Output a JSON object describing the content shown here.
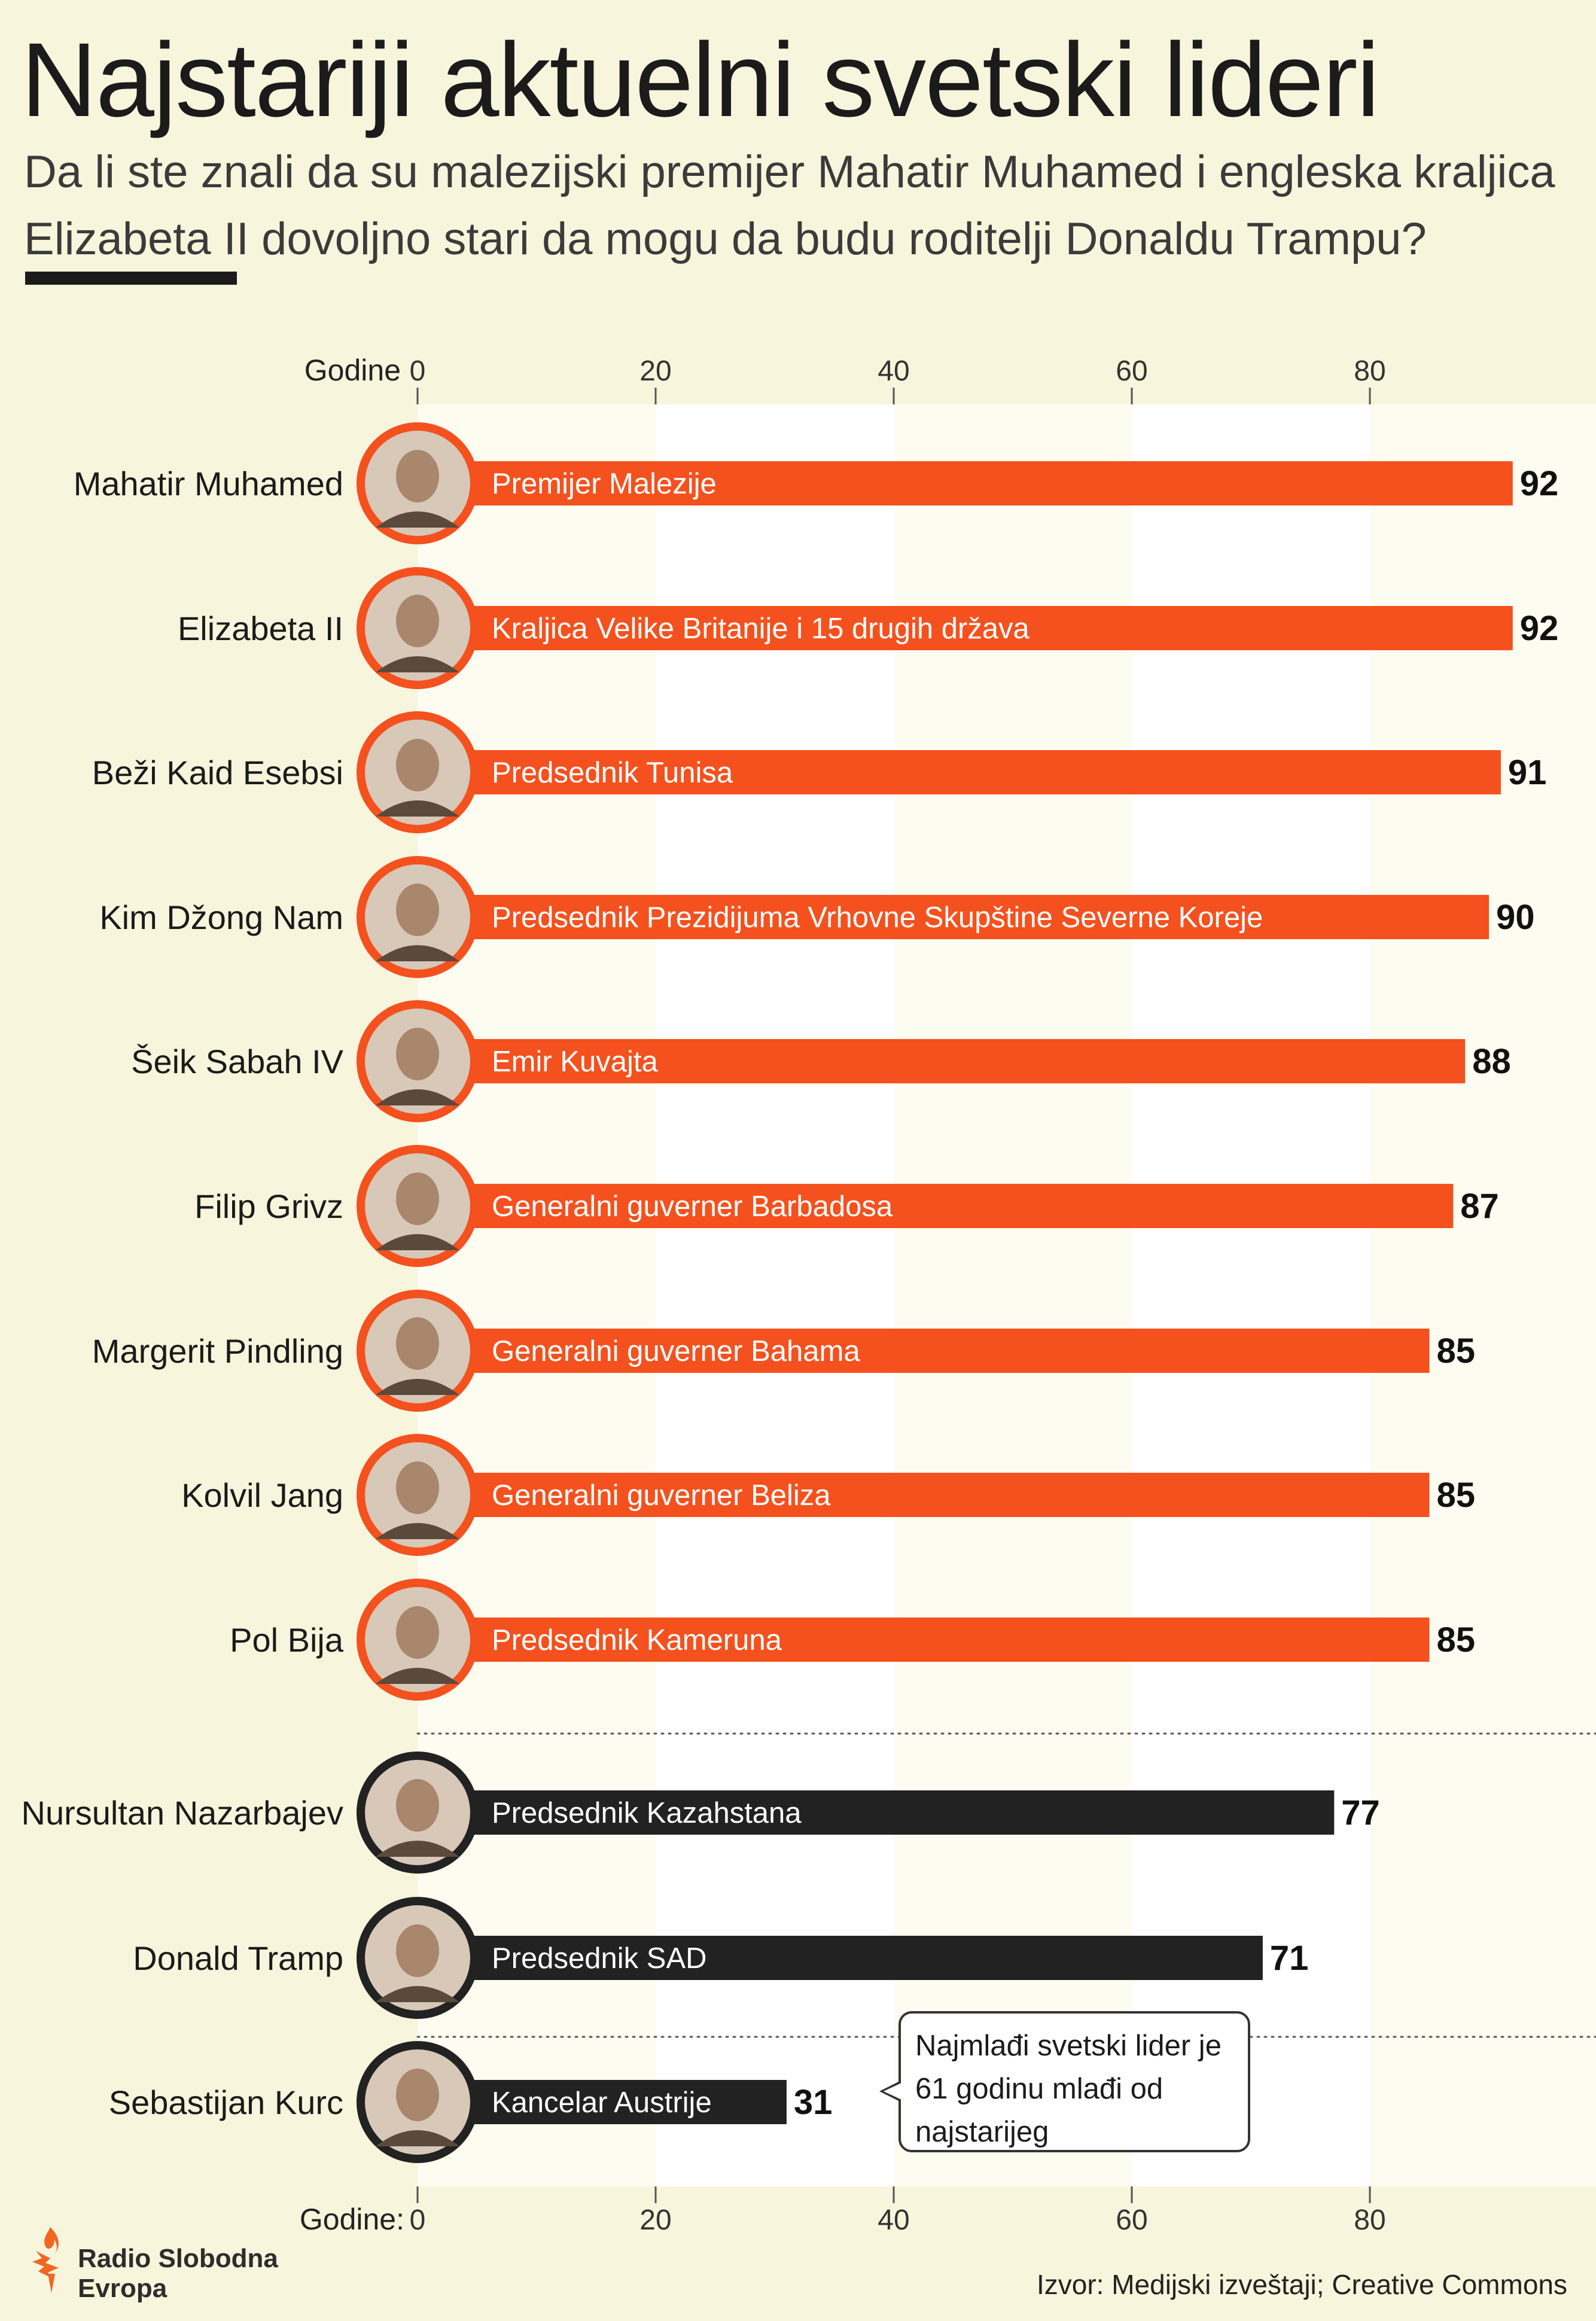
{
  "title": "Najstariji aktuelni svetski lideri",
  "subtitle": "Da li ste znali da su malezijski premijer Mahatir Muhamed i engleska kraljica Elizabeta II dovoljno stari da mogu da budu roditelji Donaldu Trampu?",
  "callout": "Najmlađi svetski lider je 61 godinu mlađi od najstarijeg",
  "source": "Izvor: Medijski izveštaji; Creative Commons",
  "logo": {
    "name": "Radio Slobodna Evropa",
    "icon": "rse-flame-logo"
  },
  "colors": {
    "background": "#f7f5dc",
    "band_light": "#fcfcf0",
    "band_white": "#ffffff",
    "bar_orange": "#f4511e",
    "bar_black": "#222222",
    "logo": "#f26522"
  },
  "chart_data": {
    "type": "bar",
    "orientation": "horizontal",
    "axis_label_top": "Godine",
    "axis_label_bottom": "Godine:",
    "ticks": [
      0,
      20,
      40,
      60,
      80
    ],
    "xlim": [
      0,
      100
    ],
    "rows": [
      {
        "name": "Mahatir Muhamed",
        "role": "Premijer Malezije",
        "value": 92,
        "group": "oldest",
        "icon": "portrait-photo"
      },
      {
        "name": "Elizabeta II",
        "role": "Kraljica Velike Britanije i 15 drugih država",
        "value": 92,
        "group": "oldest",
        "icon": "portrait-photo"
      },
      {
        "name": "Beži Kaid Esebsi",
        "role": "Predsednik Tunisa",
        "value": 91,
        "group": "oldest",
        "icon": "portrait-photo"
      },
      {
        "name": "Kim Džong Nam",
        "role": "Predsednik Prezidijuma Vrhovne Skupštine Severne Koreje",
        "value": 90,
        "group": "oldest",
        "icon": "portrait-photo"
      },
      {
        "name": "Šeik Sabah IV",
        "role": "Emir Kuvajta",
        "value": 88,
        "group": "oldest",
        "icon": "portrait-photo"
      },
      {
        "name": "Filip Grivz",
        "role": "Generalni guverner Barbadosa",
        "value": 87,
        "group": "oldest",
        "icon": "portrait-photo"
      },
      {
        "name": "Margerit Pindling",
        "role": "Generalni guverner Bahama",
        "value": 85,
        "group": "oldest",
        "icon": "portrait-photo"
      },
      {
        "name": "Kolvil Jang",
        "role": "Generalni guverner Beliza",
        "value": 85,
        "group": "oldest",
        "icon": "portrait-photo"
      },
      {
        "name": "Pol Bija",
        "role": "Predsednik Kameruna",
        "value": 85,
        "group": "oldest",
        "icon": "portrait-photo"
      },
      {
        "name": "Nursultan Nazarbajev",
        "role": "Predsednik Kazahstana",
        "value": 77,
        "group": "comparison",
        "icon": "portrait-photo"
      },
      {
        "name": "Donald Tramp",
        "role": "Predsednik SAD",
        "value": 71,
        "group": "comparison",
        "icon": "portrait-photo"
      },
      {
        "name": "Sebastijan Kurc",
        "role": "Kancelar Austrije",
        "value": 31,
        "group": "youngest",
        "icon": "portrait-photo"
      }
    ]
  }
}
